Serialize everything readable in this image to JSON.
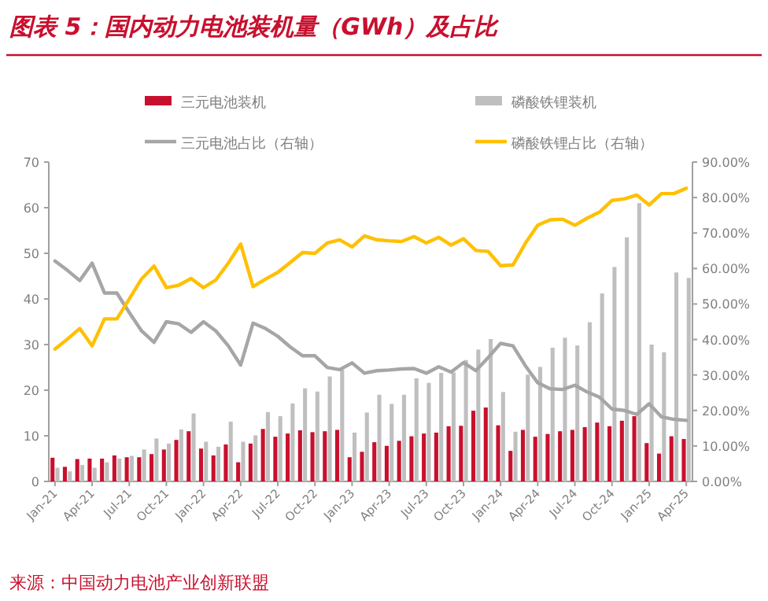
{
  "chart_data": {
    "type": "bar",
    "title": "图表 5：国内动力电池装机量（GWh）及占比",
    "categories": [
      "Jan-21",
      null,
      null,
      "Apr-21",
      null,
      null,
      "Jul-21",
      null,
      null,
      "Oct-21",
      null,
      null,
      "Jan-22",
      null,
      null,
      "Apr-22",
      null,
      null,
      "Jul-22",
      null,
      null,
      "Oct-22",
      null,
      null,
      "Jan-23",
      null,
      null,
      "Apr-23",
      null,
      null,
      "Jul-23",
      null,
      null,
      "Oct-23",
      null,
      null,
      "Jan-24",
      null,
      null,
      "Apr-24",
      null,
      null,
      "Jul-24",
      null,
      null,
      "Oct-24",
      null,
      null,
      "Jan-25",
      null,
      null,
      "Apr-25"
    ],
    "series": [
      {
        "name": "三元电池装机",
        "color": "#c8102e",
        "values": [
          5.2,
          3.2,
          4.9,
          5.0,
          5.0,
          5.7,
          5.3,
          5.3,
          6.0,
          7.0,
          9.1,
          11.0,
          7.2,
          5.7,
          8.1,
          4.2,
          8.3,
          11.5,
          9.8,
          10.5,
          11.2,
          10.8,
          11.0,
          11.3,
          5.3,
          6.5,
          8.6,
          7.8,
          8.9,
          9.9,
          10.5,
          10.7,
          12.1,
          12.2,
          15.5,
          16.2,
          12.3,
          6.7,
          11.3,
          9.8,
          10.4,
          11.0,
          11.3,
          11.9,
          12.9,
          12.1,
          13.3,
          14.3,
          8.4,
          6.1,
          9.9,
          9.3
        ]
      },
      {
        "name": "磷酸铁锂装机",
        "color": "#bfbfbf",
        "values": [
          3.0,
          2.2,
          3.6,
          3.0,
          4.2,
          5.0,
          5.6,
          7.0,
          9.4,
          8.3,
          11.4,
          14.9,
          8.7,
          7.6,
          13.1,
          8.7,
          10.1,
          15.2,
          14.3,
          17.1,
          20.4,
          19.7,
          23.0,
          24.5,
          10.7,
          15.1,
          19.0,
          17.0,
          19.0,
          22.6,
          21.6,
          23.8,
          23.9,
          26.6,
          28.9,
          31.2,
          19.6,
          10.9,
          23.4,
          25.1,
          29.3,
          31.5,
          29.8,
          34.9,
          41.2,
          47.0,
          53.5,
          61.0,
          30.0,
          28.3,
          45.8,
          44.6
        ]
      },
      {
        "name": "三元电池占比（右轴）",
        "type": "line",
        "axis": "y2",
        "color": "#a6a6a6",
        "values": [
          62.1,
          59.5,
          56.6,
          61.5,
          53.1,
          53.1,
          47.6,
          42.4,
          39.2,
          45.0,
          44.4,
          42.0,
          45.0,
          42.4,
          38.2,
          32.8,
          44.6,
          43.1,
          40.9,
          37.9,
          35.4,
          35.4,
          32.1,
          31.5,
          33.4,
          30.5,
          31.2,
          31.4,
          31.7,
          31.8,
          30.5,
          32.3,
          30.8,
          33.5,
          31.2,
          34.9,
          38.9,
          38.2,
          32.6,
          27.8,
          26.1,
          25.9,
          27.1,
          25.2,
          23.7,
          20.4,
          20.0,
          18.9,
          21.9,
          18.2,
          17.5,
          17.2
        ]
      },
      {
        "name": "磷酸铁锂占比（右轴）",
        "type": "line",
        "axis": "y2",
        "color": "#ffc000",
        "values": [
          37.3,
          40.1,
          43.1,
          38.2,
          45.8,
          45.8,
          51.4,
          57.1,
          60.7,
          54.6,
          55.3,
          57.2,
          54.6,
          56.8,
          61.5,
          66.9,
          54.9,
          57.0,
          58.9,
          61.7,
          64.5,
          64.3,
          67.2,
          68.1,
          66.1,
          69.2,
          68.1,
          67.8,
          67.6,
          69.0,
          67.2,
          68.8,
          66.6,
          68.4,
          65.1,
          64.8,
          60.8,
          61.0,
          67.1,
          72.2,
          73.7,
          73.9,
          72.2,
          74.2,
          75.9,
          79.2,
          79.6,
          80.7,
          77.9,
          81.1,
          81.1,
          82.6
        ]
      }
    ],
    "ylim": [
      0,
      70
    ],
    "yticks": [
      0,
      10,
      20,
      30,
      40,
      50,
      60,
      70
    ],
    "y2lim": [
      0,
      90
    ],
    "y2ticks": [
      {
        "value": 0,
        "label": "0.00%"
      },
      {
        "value": 10,
        "label": "10.00%"
      },
      {
        "value": 20,
        "label": "20.00%"
      },
      {
        "value": 30,
        "label": "30.00%"
      },
      {
        "value": 40,
        "label": "40.00%"
      },
      {
        "value": 50,
        "label": "50.00%"
      },
      {
        "value": 60,
        "label": "60.00%"
      },
      {
        "value": 70,
        "label": "70.00%"
      },
      {
        "value": 80,
        "label": "80.00%"
      },
      {
        "value": 90,
        "label": "90.00%"
      }
    ],
    "legend": "top",
    "grid": false,
    "annotations": [
      "来源：中国动力电池产业创新联盟"
    ]
  }
}
